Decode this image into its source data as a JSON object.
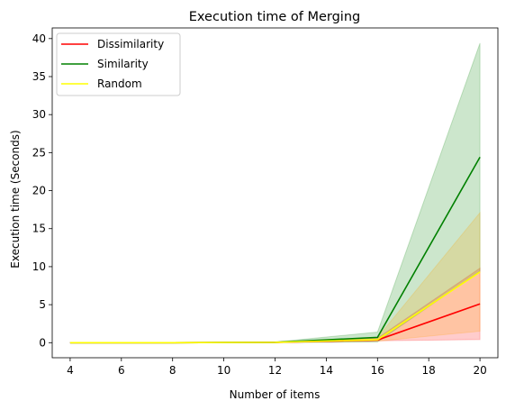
{
  "chart_data": {
    "type": "line",
    "title": "Execution time of Merging",
    "xlabel": "Number of items",
    "ylabel": "Execution time (Seconds)",
    "xlim": [
      3.3,
      20.7
    ],
    "ylim": [
      -1.98,
      41.4
    ],
    "xticks": [
      4,
      6,
      8,
      10,
      12,
      14,
      16,
      18,
      20
    ],
    "yticks": [
      0,
      5,
      10,
      15,
      20,
      25,
      30,
      35,
      40
    ],
    "grid": false,
    "legend_position": "top-left",
    "x": [
      4,
      8,
      12,
      16,
      20
    ],
    "series": [
      {
        "name": "Dissimilarity",
        "color": "#ff0000",
        "band_color": "#ff0000",
        "values": [
          0.0,
          0.0,
          0.05,
          0.35,
          5.1
        ],
        "lower": [
          0.0,
          0.0,
          0.0,
          0.25,
          0.4
        ],
        "upper": [
          0.0,
          0.0,
          0.1,
          0.6,
          9.8
        ]
      },
      {
        "name": "Similarity",
        "color": "#008000",
        "band_color": "#008000",
        "values": [
          0.0,
          0.0,
          0.05,
          0.7,
          24.4
        ],
        "lower": [
          0.0,
          0.0,
          0.0,
          0.1,
          9.4
        ],
        "upper": [
          0.0,
          0.0,
          0.1,
          1.4,
          39.4
        ]
      },
      {
        "name": "Random",
        "color": "#ffff00",
        "band_color": "#ffa500",
        "values": [
          0.0,
          0.0,
          0.05,
          0.4,
          9.3
        ],
        "lower": [
          0.0,
          0.0,
          0.0,
          0.2,
          1.5
        ],
        "upper": [
          0.0,
          0.0,
          0.1,
          0.7,
          17.1
        ]
      }
    ]
  }
}
